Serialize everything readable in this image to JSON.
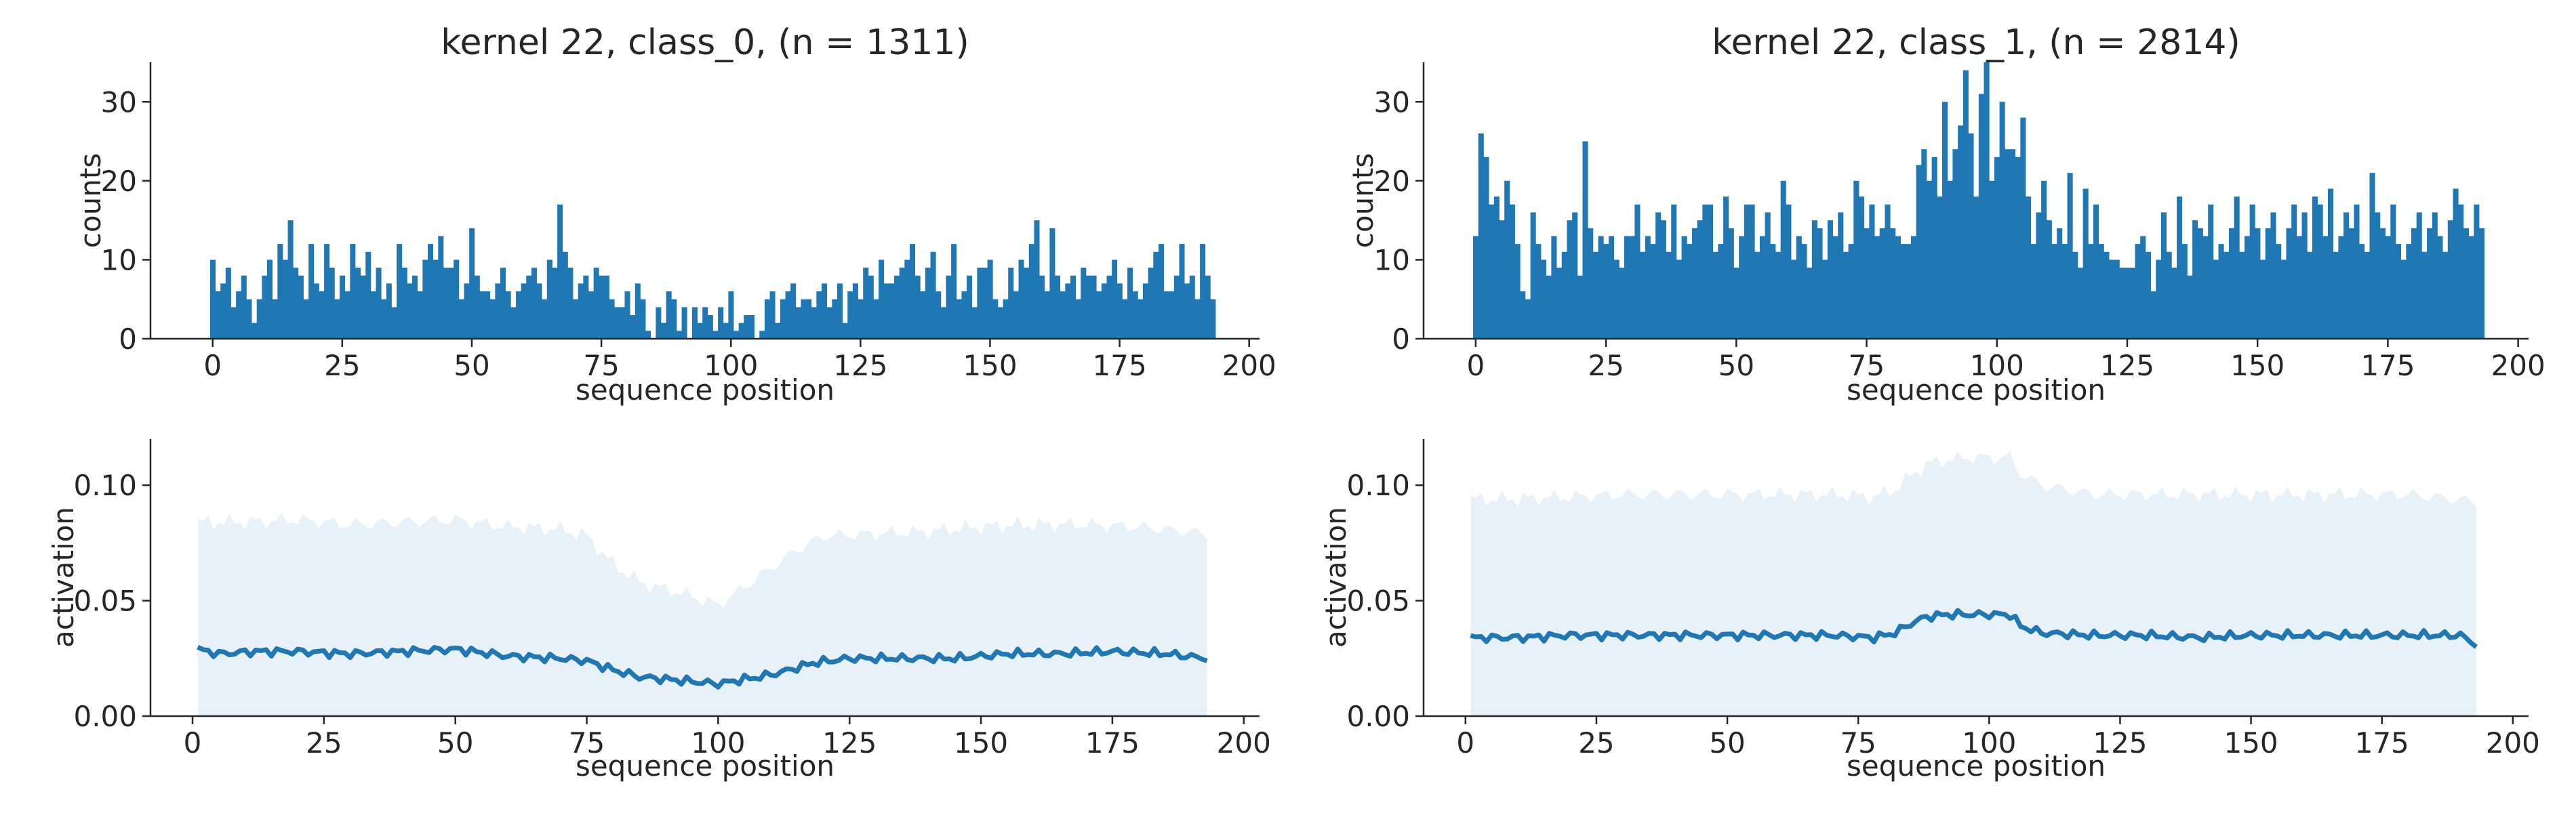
{
  "figure": {
    "colors": {
      "bar": "#1f77b4",
      "line": "#1f77b4",
      "band": "#e8f0f8",
      "axis": "#262626"
    }
  },
  "chart_data": [
    {
      "id": "hist0",
      "type": "bar",
      "title": "kernel 22, class_0, (n = 1311)",
      "xlabel": "sequence position",
      "ylabel": "counts",
      "xlim": [
        -12,
        202
      ],
      "ylim": [
        0,
        35
      ],
      "xticks": [
        "0",
        "25",
        "50",
        "75",
        "100",
        "125",
        "150",
        "175",
        "200"
      ],
      "yticks": [
        "0",
        "10",
        "20",
        "30"
      ],
      "grid": false,
      "x_start": 0,
      "values": [
        10,
        6,
        7,
        9,
        4,
        6,
        8,
        5,
        2,
        5,
        8,
        10,
        5,
        12,
        10,
        15,
        9,
        8,
        5,
        12,
        7,
        6,
        12,
        9,
        5,
        8,
        6,
        12,
        9,
        8,
        11,
        6,
        9,
        5,
        7,
        4,
        12,
        9,
        7,
        8,
        6,
        10,
        12,
        10,
        13,
        9,
        9,
        10,
        5,
        7,
        14,
        8,
        6,
        6,
        5,
        7,
        9,
        6,
        4,
        6,
        7,
        8,
        9,
        7,
        5,
        10,
        9,
        17,
        11,
        9,
        5,
        7,
        8,
        6,
        9,
        8,
        8,
        5,
        4,
        4,
        6,
        3,
        7,
        5,
        1,
        0,
        4,
        2,
        6,
        5,
        1,
        4,
        0,
        4,
        2,
        4,
        3,
        1,
        4,
        2,
        6,
        1,
        2,
        3,
        3,
        0,
        1,
        5,
        6,
        2,
        5,
        6,
        7,
        4,
        5,
        5,
        4,
        6,
        7,
        4,
        5,
        7,
        2,
        6,
        7,
        5,
        9,
        8,
        5,
        10,
        7,
        7,
        8,
        9,
        10,
        12,
        8,
        6,
        9,
        11,
        6,
        4,
        8,
        12,
        5,
        6,
        8,
        4,
        9,
        9,
        10,
        5,
        4,
        5,
        9,
        6,
        10,
        9,
        12,
        15,
        8,
        6,
        14,
        8,
        6,
        7,
        8,
        5,
        9,
        8,
        8,
        6,
        7,
        8,
        10,
        7,
        5,
        9,
        6,
        5,
        7,
        9,
        11,
        12,
        6,
        6,
        8,
        12,
        7,
        8,
        5,
        12,
        8,
        5
      ]
    },
    {
      "id": "hist1",
      "type": "bar",
      "title": "kernel 22, class_1, (n = 2814)",
      "xlabel": "sequence position",
      "ylabel": "counts",
      "xlim": [
        -10,
        202
      ],
      "ylim": [
        0,
        35
      ],
      "xticks": [
        "0",
        "25",
        "50",
        "75",
        "100",
        "125",
        "150",
        "175",
        "200"
      ],
      "yticks": [
        "0",
        "10",
        "20",
        "30"
      ],
      "grid": false,
      "x_start": 0,
      "values": [
        13,
        26,
        23,
        17,
        18,
        15,
        20,
        17,
        12,
        6,
        5,
        16,
        12,
        10,
        8,
        13,
        9,
        11,
        15,
        16,
        8,
        25,
        14,
        11,
        13,
        12,
        13,
        10,
        9,
        13,
        13,
        17,
        11,
        13,
        12,
        16,
        15,
        11,
        17,
        10,
        13,
        12,
        14,
        15,
        17,
        17,
        11,
        12,
        18,
        14,
        9,
        13,
        17,
        17,
        11,
        13,
        16,
        12,
        11,
        20,
        17,
        10,
        13,
        12,
        9,
        15,
        14,
        10,
        15,
        13,
        16,
        11,
        12,
        20,
        18,
        14,
        17,
        13,
        14,
        17,
        14,
        13,
        12,
        12,
        13,
        22,
        24,
        20,
        23,
        18,
        30,
        20,
        24,
        27,
        34,
        26,
        18,
        31,
        35,
        20,
        23,
        30,
        24,
        24,
        23,
        28,
        18,
        12,
        16,
        20,
        15,
        12,
        14,
        12,
        21,
        11,
        9,
        19,
        12,
        17,
        12,
        11,
        10,
        10,
        9,
        9,
        9,
        12,
        13,
        11,
        6,
        10,
        16,
        11,
        9,
        18,
        12,
        8,
        15,
        14,
        13,
        17,
        10,
        12,
        11,
        14,
        18,
        11,
        13,
        17,
        14,
        10,
        14,
        16,
        12,
        10,
        14,
        17,
        13,
        16,
        11,
        18,
        17,
        13,
        19,
        11,
        13,
        16,
        14,
        17,
        12,
        11,
        21,
        16,
        14,
        13,
        17,
        12,
        10,
        12,
        14,
        16,
        11,
        14,
        16,
        13,
        11,
        15,
        19,
        17,
        14,
        13,
        17,
        14
      ]
    },
    {
      "id": "act0",
      "type": "line",
      "title": "",
      "xlabel": "sequence position",
      "ylabel": "activation",
      "xlim": [
        -8,
        203
      ],
      "ylim": [
        0,
        0.12
      ],
      "xticks": [
        "0",
        "25",
        "50",
        "75",
        "100",
        "125",
        "150",
        "175",
        "200"
      ],
      "yticks": [
        "0.00",
        "0.05",
        "0.10"
      ],
      "grid": false,
      "x_start": 1,
      "anchors_mean": [
        [
          1,
          0.029
        ],
        [
          5,
          0.027
        ],
        [
          12,
          0.028
        ],
        [
          20,
          0.028
        ],
        [
          30,
          0.027
        ],
        [
          40,
          0.028
        ],
        [
          50,
          0.029
        ],
        [
          60,
          0.026
        ],
        [
          70,
          0.025
        ],
        [
          75,
          0.024
        ],
        [
          80,
          0.02
        ],
        [
          85,
          0.017
        ],
        [
          90,
          0.016
        ],
        [
          95,
          0.015
        ],
        [
          100,
          0.014
        ],
        [
          105,
          0.016
        ],
        [
          108,
          0.017
        ],
        [
          112,
          0.019
        ],
        [
          118,
          0.023
        ],
        [
          125,
          0.025
        ],
        [
          135,
          0.025
        ],
        [
          145,
          0.025
        ],
        [
          155,
          0.027
        ],
        [
          165,
          0.027
        ],
        [
          175,
          0.028
        ],
        [
          185,
          0.027
        ],
        [
          193,
          0.025
        ]
      ],
      "anchors_upper": [
        [
          1,
          0.084
        ],
        [
          10,
          0.084
        ],
        [
          20,
          0.085
        ],
        [
          30,
          0.083
        ],
        [
          40,
          0.084
        ],
        [
          50,
          0.085
        ],
        [
          60,
          0.082
        ],
        [
          70,
          0.081
        ],
        [
          75,
          0.078
        ],
        [
          80,
          0.066
        ],
        [
          85,
          0.058
        ],
        [
          90,
          0.055
        ],
        [
          95,
          0.052
        ],
        [
          100,
          0.048
        ],
        [
          105,
          0.056
        ],
        [
          110,
          0.064
        ],
        [
          115,
          0.072
        ],
        [
          120,
          0.078
        ],
        [
          130,
          0.079
        ],
        [
          140,
          0.08
        ],
        [
          150,
          0.082
        ],
        [
          160,
          0.083
        ],
        [
          170,
          0.083
        ],
        [
          180,
          0.082
        ],
        [
          193,
          0.079
        ]
      ]
    },
    {
      "id": "act1",
      "type": "line",
      "title": "",
      "xlabel": "sequence position",
      "ylabel": "activation",
      "xlim": [
        -8,
        203
      ],
      "ylim": [
        0,
        0.12
      ],
      "xticks": [
        "0",
        "25",
        "50",
        "75",
        "100",
        "125",
        "150",
        "175",
        "200"
      ],
      "yticks": [
        "0.00",
        "0.05",
        "0.10"
      ],
      "grid": false,
      "x_start": 1,
      "anchors_mean": [
        [
          1,
          0.034
        ],
        [
          10,
          0.034
        ],
        [
          20,
          0.035
        ],
        [
          30,
          0.035
        ],
        [
          40,
          0.035
        ],
        [
          50,
          0.035
        ],
        [
          60,
          0.035
        ],
        [
          70,
          0.035
        ],
        [
          78,
          0.034
        ],
        [
          82,
          0.036
        ],
        [
          85,
          0.04
        ],
        [
          88,
          0.043
        ],
        [
          92,
          0.044
        ],
        [
          96,
          0.044
        ],
        [
          100,
          0.044
        ],
        [
          104,
          0.044
        ],
        [
          106,
          0.039
        ],
        [
          110,
          0.036
        ],
        [
          120,
          0.035
        ],
        [
          130,
          0.035
        ],
        [
          140,
          0.034
        ],
        [
          150,
          0.035
        ],
        [
          160,
          0.035
        ],
        [
          170,
          0.035
        ],
        [
          180,
          0.035
        ],
        [
          190,
          0.035
        ],
        [
          193,
          0.031
        ]
      ],
      "anchors_upper": [
        [
          1,
          0.094
        ],
        [
          10,
          0.094
        ],
        [
          20,
          0.095
        ],
        [
          30,
          0.096
        ],
        [
          40,
          0.096
        ],
        [
          50,
          0.096
        ],
        [
          60,
          0.096
        ],
        [
          70,
          0.096
        ],
        [
          78,
          0.095
        ],
        [
          82,
          0.098
        ],
        [
          85,
          0.104
        ],
        [
          88,
          0.109
        ],
        [
          92,
          0.111
        ],
        [
          96,
          0.112
        ],
        [
          100,
          0.112
        ],
        [
          104,
          0.112
        ],
        [
          106,
          0.105
        ],
        [
          110,
          0.1
        ],
        [
          120,
          0.096
        ],
        [
          130,
          0.096
        ],
        [
          140,
          0.096
        ],
        [
          150,
          0.096
        ],
        [
          160,
          0.096
        ],
        [
          170,
          0.096
        ],
        [
          180,
          0.096
        ],
        [
          193,
          0.093
        ]
      ]
    }
  ]
}
